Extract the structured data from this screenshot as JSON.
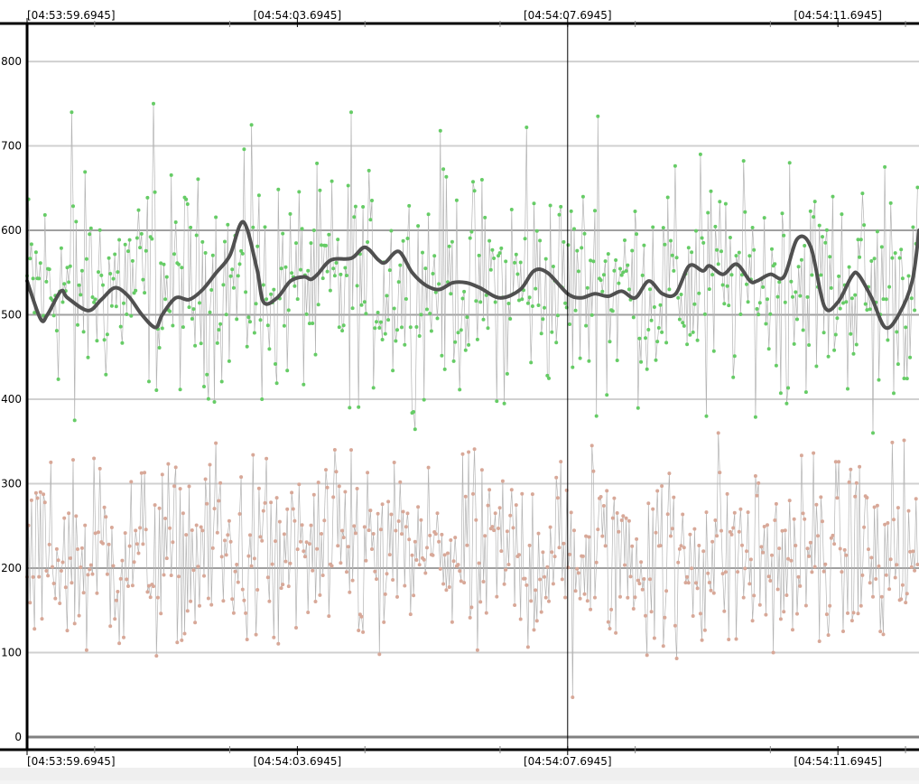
{
  "chart_data": {
    "type": "scatter",
    "title": "",
    "xlabel": "",
    "ylabel": "",
    "x_tick_labels": [
      "[04:53:59.6945]",
      "[04:54:03.6945]",
      "[04:54:07.6945]",
      "[04:54:11.6945]"
    ],
    "x_tick_seconds": [
      0,
      4,
      8,
      12
    ],
    "y_ticks": [
      0,
      100,
      200,
      300,
      400,
      500,
      600,
      700,
      800
    ],
    "ylim": [
      -15,
      845
    ],
    "xlim_seconds": [
      0,
      13.2
    ],
    "cursor_seconds": 8,
    "grid": true,
    "legend": "none",
    "colors": {
      "upper_points": "#66cc66",
      "lower_points": "#d8a898",
      "connector": "#b4b4b4",
      "smooth_line": "#505050",
      "grid_major": "#a0a0a0",
      "grid_minor": "#d0d0d0",
      "cursor": "#000000"
    },
    "sample_count": 600,
    "sample_interval_s": 0.022,
    "series": [
      {
        "style": "scatter",
        "mean": 535,
        "min_outliers": [
          375,
          395,
          400,
          390,
          385,
          395,
          405,
          380,
          395,
          360
        ],
        "max_outliers": [
          740,
          750,
          725,
          740,
          718,
          722,
          735,
          690,
          680,
          675
        ]
      },
      {
        "style": "scatter",
        "mean": 215,
        "min_outliers": [
          103,
          112,
          118,
          98,
          103,
          47,
          93,
          100,
          125
        ],
        "max_outliers": [
          330,
          348,
          340,
          335,
          345,
          360,
          320
        ]
      },
      {
        "style": "line",
        "x": [
          0,
          0.2,
          0.3,
          0.5,
          0.6,
          0.9,
          1.1,
          1.3,
          1.5,
          1.7,
          1.9,
          2.0,
          2.2,
          2.4,
          2.6,
          2.8,
          3.0,
          3.2,
          3.4,
          3.5,
          3.7,
          3.9,
          4.1,
          4.2,
          4.3,
          4.5,
          4.8,
          5.0,
          5.2,
          5.3,
          5.5,
          5.7,
          5.9,
          6.1,
          6.3,
          6.5,
          6.7,
          7.0,
          7.3,
          7.5,
          7.7,
          8.0,
          8.2,
          8.4,
          8.6,
          8.8,
          9.0,
          9.2,
          9.4,
          9.6,
          9.8,
          10.0,
          10.1,
          10.3,
          10.5,
          10.7,
          10.8,
          11.0,
          11.2,
          11.4,
          11.6,
          11.8,
          12.0,
          12.2,
          12.3,
          12.5,
          12.7,
          12.9,
          13.1,
          13.2
        ],
        "values": [
          540,
          495,
          500,
          528,
          520,
          505,
          518,
          532,
          522,
          500,
          485,
          500,
          520,
          518,
          530,
          550,
          570,
          610,
          555,
          515,
          520,
          540,
          545,
          542,
          548,
          565,
          567,
          580,
          565,
          562,
          575,
          550,
          535,
          530,
          538,
          538,
          532,
          520,
          530,
          552,
          550,
          525,
          520,
          525,
          522,
          528,
          520,
          540,
          525,
          525,
          558,
          552,
          558,
          548,
          560,
          540,
          540,
          548,
          545,
          590,
          580,
          510,
          515,
          545,
          548,
          520,
          485,
          500,
          540,
          600
        ]
      }
    ]
  }
}
